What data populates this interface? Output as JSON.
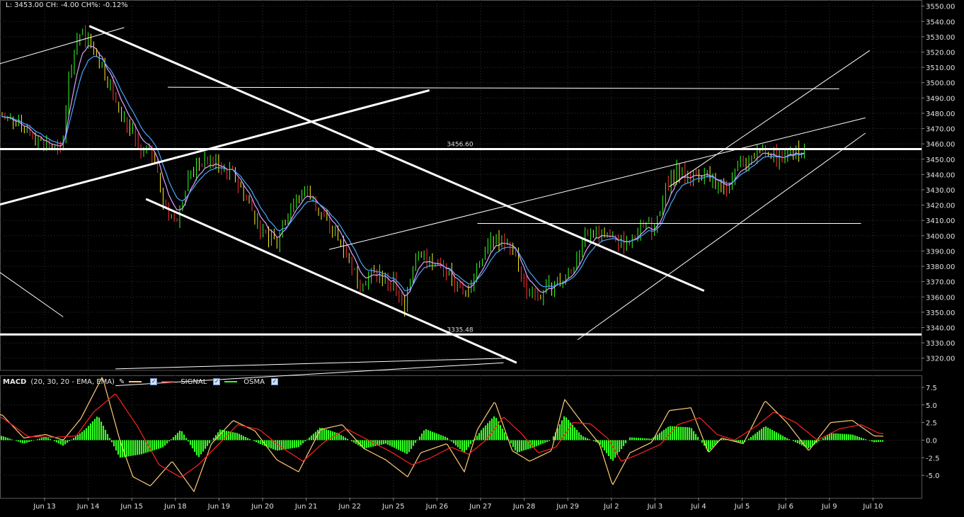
{
  "header": {
    "info_text": "L: 3453.00 CH: -4.00 CH%: -0.12%"
  },
  "macd_legend": {
    "title": "MACD",
    "params": "(20, 30, 20 - EMA, EMA)",
    "signal_label": "SIGNAL",
    "osma_label": "OSMA",
    "macd_color": "#ffcc77",
    "signal_color": "#ff2222",
    "osma_color": "#33ff22"
  },
  "chart_data": [
    {
      "type": "candlestick",
      "y_ticks": [
        3320,
        3330,
        3340,
        3350,
        3360,
        3370,
        3380,
        3390,
        3400,
        3410,
        3420,
        3430,
        3440,
        3450,
        3460,
        3470,
        3480,
        3490,
        3500,
        3510,
        3520,
        3530,
        3540,
        3550
      ],
      "ylim": [
        3312,
        3554
      ],
      "x_labels": [
        "Jun 13",
        "Jun 14",
        "Jun 15",
        "Jun 18",
        "Jun 19",
        "Jun 20",
        "Jun 21",
        "Jun 22",
        "Jun 25",
        "Jun 26",
        "Jun 27",
        "Jun 28",
        "Jun 29",
        "Jul 2",
        "Jul 3",
        "Jul 4",
        "Jul 5",
        "Jul 6",
        "Jul 9",
        "Jul 10"
      ],
      "price_path": [
        [
          0,
          3478
        ],
        [
          0.6,
          3466
        ],
        [
          1.0,
          3460
        ],
        [
          1.35,
          3454
        ],
        [
          1.55,
          3510
        ],
        [
          1.75,
          3532
        ],
        [
          2.0,
          3528
        ],
        [
          2.3,
          3510
        ],
        [
          2.6,
          3490
        ],
        [
          2.9,
          3470
        ],
        [
          3.2,
          3455
        ],
        [
          3.5,
          3452
        ],
        [
          3.7,
          3418
        ],
        [
          4.0,
          3410
        ],
        [
          4.3,
          3440
        ],
        [
          4.6,
          3450
        ],
        [
          5.0,
          3445
        ],
        [
          5.3,
          3440
        ],
        [
          5.6,
          3424
        ],
        [
          6.0,
          3400
        ],
        [
          6.3,
          3395
        ],
        [
          6.6,
          3420
        ],
        [
          7.0,
          3430
        ],
        [
          7.4,
          3410
        ],
        [
          7.8,
          3395
        ],
        [
          8.2,
          3370
        ],
        [
          8.6,
          3375
        ],
        [
          9.0,
          3368
        ],
        [
          9.2,
          3352
        ],
        [
          9.5,
          3392
        ],
        [
          9.8,
          3385
        ],
        [
          10.2,
          3375
        ],
        [
          10.6,
          3360
        ],
        [
          10.9,
          3380
        ],
        [
          11.2,
          3400
        ],
        [
          11.5,
          3395
        ],
        [
          11.8,
          3385
        ],
        [
          12.0,
          3365
        ],
        [
          12.3,
          3360
        ],
        [
          12.6,
          3368
        ],
        [
          13.0,
          3375
        ],
        [
          13.3,
          3395
        ],
        [
          13.6,
          3402
        ],
        [
          13.9,
          3398
        ],
        [
          14.2,
          3395
        ],
        [
          14.5,
          3400
        ],
        [
          14.8,
          3405
        ],
        [
          15.0,
          3406
        ],
        [
          15.2,
          3430
        ],
        [
          15.5,
          3444
        ],
        [
          15.8,
          3438
        ],
        [
          16.2,
          3440
        ],
        [
          16.5,
          3430
        ],
        [
          16.9,
          3445
        ],
        [
          17.2,
          3452
        ],
        [
          17.5,
          3456
        ],
        [
          17.8,
          3450
        ],
        [
          18.2,
          3455
        ],
        [
          18.4,
          3453
        ]
      ],
      "horizontal_levels": [
        {
          "label": "3456.60",
          "value": 3456.6
        },
        {
          "label": "3335.48",
          "value": 3335.48
        }
      ],
      "trend_lines": [
        {
          "from": [
            -0.1,
            3512
          ],
          "to": [
            2.8,
            3536
          ],
          "weight": 1
        },
        {
          "from": [
            2.0,
            3537
          ],
          "to": [
            16.1,
            3364
          ],
          "weight": 3
        },
        {
          "from": [
            2.6,
            3313
          ],
          "to": [
            11.6,
            3320
          ],
          "weight": 0
        },
        {
          "from": [
            2.6,
            3302
          ],
          "to": [
            11.5,
            3317
          ],
          "weight": 0
        },
        {
          "from": [
            -0.1,
            3420
          ],
          "to": [
            9.8,
            3495
          ],
          "weight": 3
        },
        {
          "from": [
            3.3,
            3424
          ],
          "to": [
            11.8,
            3317
          ],
          "weight": 3
        },
        {
          "from": [
            3.8,
            3497
          ],
          "to": [
            19.2,
            3496
          ],
          "weight": 1
        },
        {
          "from": [
            7.5,
            3391
          ],
          "to": [
            19.8,
            3477
          ],
          "weight": 1
        },
        {
          "from": [
            10.9,
            3408
          ],
          "to": [
            19.7,
            3408
          ],
          "weight": 1
        },
        {
          "from": [
            13.2,
            3332
          ],
          "to": [
            19.8,
            3467
          ],
          "weight": 1
        },
        {
          "from": [
            15.3,
            3432
          ],
          "to": [
            19.9,
            3521
          ],
          "weight": 1
        },
        {
          "from": [
            -0.1,
            3377
          ],
          "to": [
            1.4,
            3347
          ],
          "weight": 1
        }
      ]
    },
    {
      "type": "line",
      "title": "MACD",
      "y_ticks": [
        -5.0,
        -2.5,
        0.0,
        2.5,
        5.0,
        7.5
      ],
      "y_tick_labels": [
        "-5.0",
        "-2.5",
        "0.0",
        "2.5",
        "5.0",
        "7.5"
      ],
      "ylim": [
        -8.2,
        9.2
      ],
      "series": [
        {
          "name": "MACD",
          "points": [
            [
              0,
              3.6
            ],
            [
              0.5,
              0.3
            ],
            [
              1.0,
              0.8
            ],
            [
              1.4,
              0.0
            ],
            [
              1.8,
              3.0
            ],
            [
              2.3,
              9.0
            ],
            [
              2.7,
              0.0
            ],
            [
              3.0,
              -5.2
            ],
            [
              3.4,
              -6.5
            ],
            [
              3.9,
              -3.0
            ],
            [
              4.4,
              -7.3
            ],
            [
              4.8,
              -0.5
            ],
            [
              5.3,
              2.8
            ],
            [
              5.8,
              1.3
            ],
            [
              6.3,
              -2.8
            ],
            [
              6.8,
              -4.5
            ],
            [
              7.3,
              1.5
            ],
            [
              7.8,
              2.2
            ],
            [
              8.3,
              -1.2
            ],
            [
              8.8,
              -2.8
            ],
            [
              9.3,
              -5.2
            ],
            [
              9.6,
              -1.8
            ],
            [
              10.2,
              -0.5
            ],
            [
              10.6,
              -4.5
            ],
            [
              10.9,
              1.5
            ],
            [
              11.3,
              5.5
            ],
            [
              11.7,
              -1.5
            ],
            [
              12.1,
              -3.0
            ],
            [
              12.6,
              -1.5
            ],
            [
              12.9,
              5.8
            ],
            [
              13.3,
              2.5
            ],
            [
              13.7,
              -0.5
            ],
            [
              14.0,
              -6.4
            ],
            [
              14.4,
              -1.8
            ],
            [
              14.9,
              -0.3
            ],
            [
              15.3,
              4.2
            ],
            [
              15.8,
              4.6
            ],
            [
              16.2,
              -1.8
            ],
            [
              16.5,
              0.3
            ],
            [
              17.0,
              -0.5
            ],
            [
              17.5,
              5.6
            ],
            [
              18.0,
              2.5
            ],
            [
              18.5,
              -1.5
            ],
            [
              19.0,
              2.5
            ],
            [
              19.5,
              2.8
            ],
            [
              20.0,
              0.6
            ],
            [
              20.5,
              0.5
            ]
          ]
        },
        {
          "name": "SIGNAL",
          "points": [
            [
              0,
              3.2
            ],
            [
              0.6,
              0.5
            ],
            [
              1.2,
              0.4
            ],
            [
              1.7,
              0.6
            ],
            [
              2.1,
              4.0
            ],
            [
              2.6,
              6.6
            ],
            [
              3.1,
              2.0
            ],
            [
              3.6,
              -3.5
            ],
            [
              4.1,
              -5.3
            ],
            [
              4.5,
              -3.5
            ],
            [
              4.9,
              -1.0
            ],
            [
              5.4,
              2.2
            ],
            [
              5.9,
              1.5
            ],
            [
              6.4,
              -1.0
            ],
            [
              6.9,
              -3.0
            ],
            [
              7.4,
              -0.2
            ],
            [
              7.9,
              1.6
            ],
            [
              8.4,
              0.0
            ],
            [
              8.9,
              -1.6
            ],
            [
              9.4,
              -3.5
            ],
            [
              9.8,
              -2.6
            ],
            [
              10.3,
              -1.0
            ],
            [
              10.7,
              -2.0
            ],
            [
              11.1,
              0.0
            ],
            [
              11.5,
              3.3
            ],
            [
              11.9,
              1.0
            ],
            [
              12.3,
              -1.8
            ],
            [
              12.7,
              -1.0
            ],
            [
              13.1,
              2.5
            ],
            [
              13.5,
              2.3
            ],
            [
              13.9,
              0.2
            ],
            [
              14.2,
              -3.0
            ],
            [
              14.6,
              -2.0
            ],
            [
              15.1,
              -0.6
            ],
            [
              15.5,
              2.2
            ],
            [
              16.0,
              3.2
            ],
            [
              16.4,
              0.8
            ],
            [
              16.8,
              0.0
            ],
            [
              17.3,
              2.0
            ],
            [
              17.7,
              4.0
            ],
            [
              18.2,
              2.5
            ],
            [
              18.7,
              0.0
            ],
            [
              19.2,
              1.6
            ],
            [
              19.7,
              2.2
            ],
            [
              20.1,
              1.0
            ],
            [
              20.5,
              0.7
            ]
          ]
        },
        {
          "name": "OSMA",
          "points": [
            [
              0,
              0.6
            ],
            [
              0.5,
              -0.5
            ],
            [
              1.0,
              0.5
            ],
            [
              1.4,
              -0.8
            ],
            [
              1.9,
              1.5
            ],
            [
              2.2,
              3.5
            ],
            [
              2.7,
              -2.5
            ],
            [
              3.2,
              -2.0
            ],
            [
              3.7,
              -1.0
            ],
            [
              4.1,
              1.5
            ],
            [
              4.5,
              -2.5
            ],
            [
              5.0,
              1.5
            ],
            [
              5.4,
              1.0
            ],
            [
              5.9,
              -0.5
            ],
            [
              6.3,
              -1.5
            ],
            [
              6.8,
              -1.0
            ],
            [
              7.3,
              1.8
            ],
            [
              7.7,
              1.0
            ],
            [
              8.3,
              -1.2
            ],
            [
              8.8,
              -0.5
            ],
            [
              9.3,
              -2.0
            ],
            [
              9.7,
              1.6
            ],
            [
              10.2,
              0.4
            ],
            [
              10.6,
              -1.8
            ],
            [
              11.0,
              1.5
            ],
            [
              11.3,
              3.5
            ],
            [
              11.8,
              -1.8
            ],
            [
              12.2,
              -1.0
            ],
            [
              12.6,
              0.0
            ],
            [
              12.9,
              3.5
            ],
            [
              13.3,
              0.6
            ],
            [
              13.7,
              -0.5
            ],
            [
              14.0,
              -3.0
            ],
            [
              14.4,
              0.4
            ],
            [
              14.9,
              0.2
            ],
            [
              15.3,
              2.0
            ],
            [
              15.8,
              1.8
            ],
            [
              16.2,
              -1.6
            ],
            [
              16.5,
              0.2
            ],
            [
              17.0,
              -0.4
            ],
            [
              17.5,
              2.0
            ],
            [
              18.0,
              0.3
            ],
            [
              18.5,
              -1.2
            ],
            [
              19.0,
              1.0
            ],
            [
              19.5,
              0.8
            ],
            [
              20.0,
              -0.3
            ],
            [
              20.5,
              -0.1
            ]
          ]
        }
      ]
    }
  ]
}
